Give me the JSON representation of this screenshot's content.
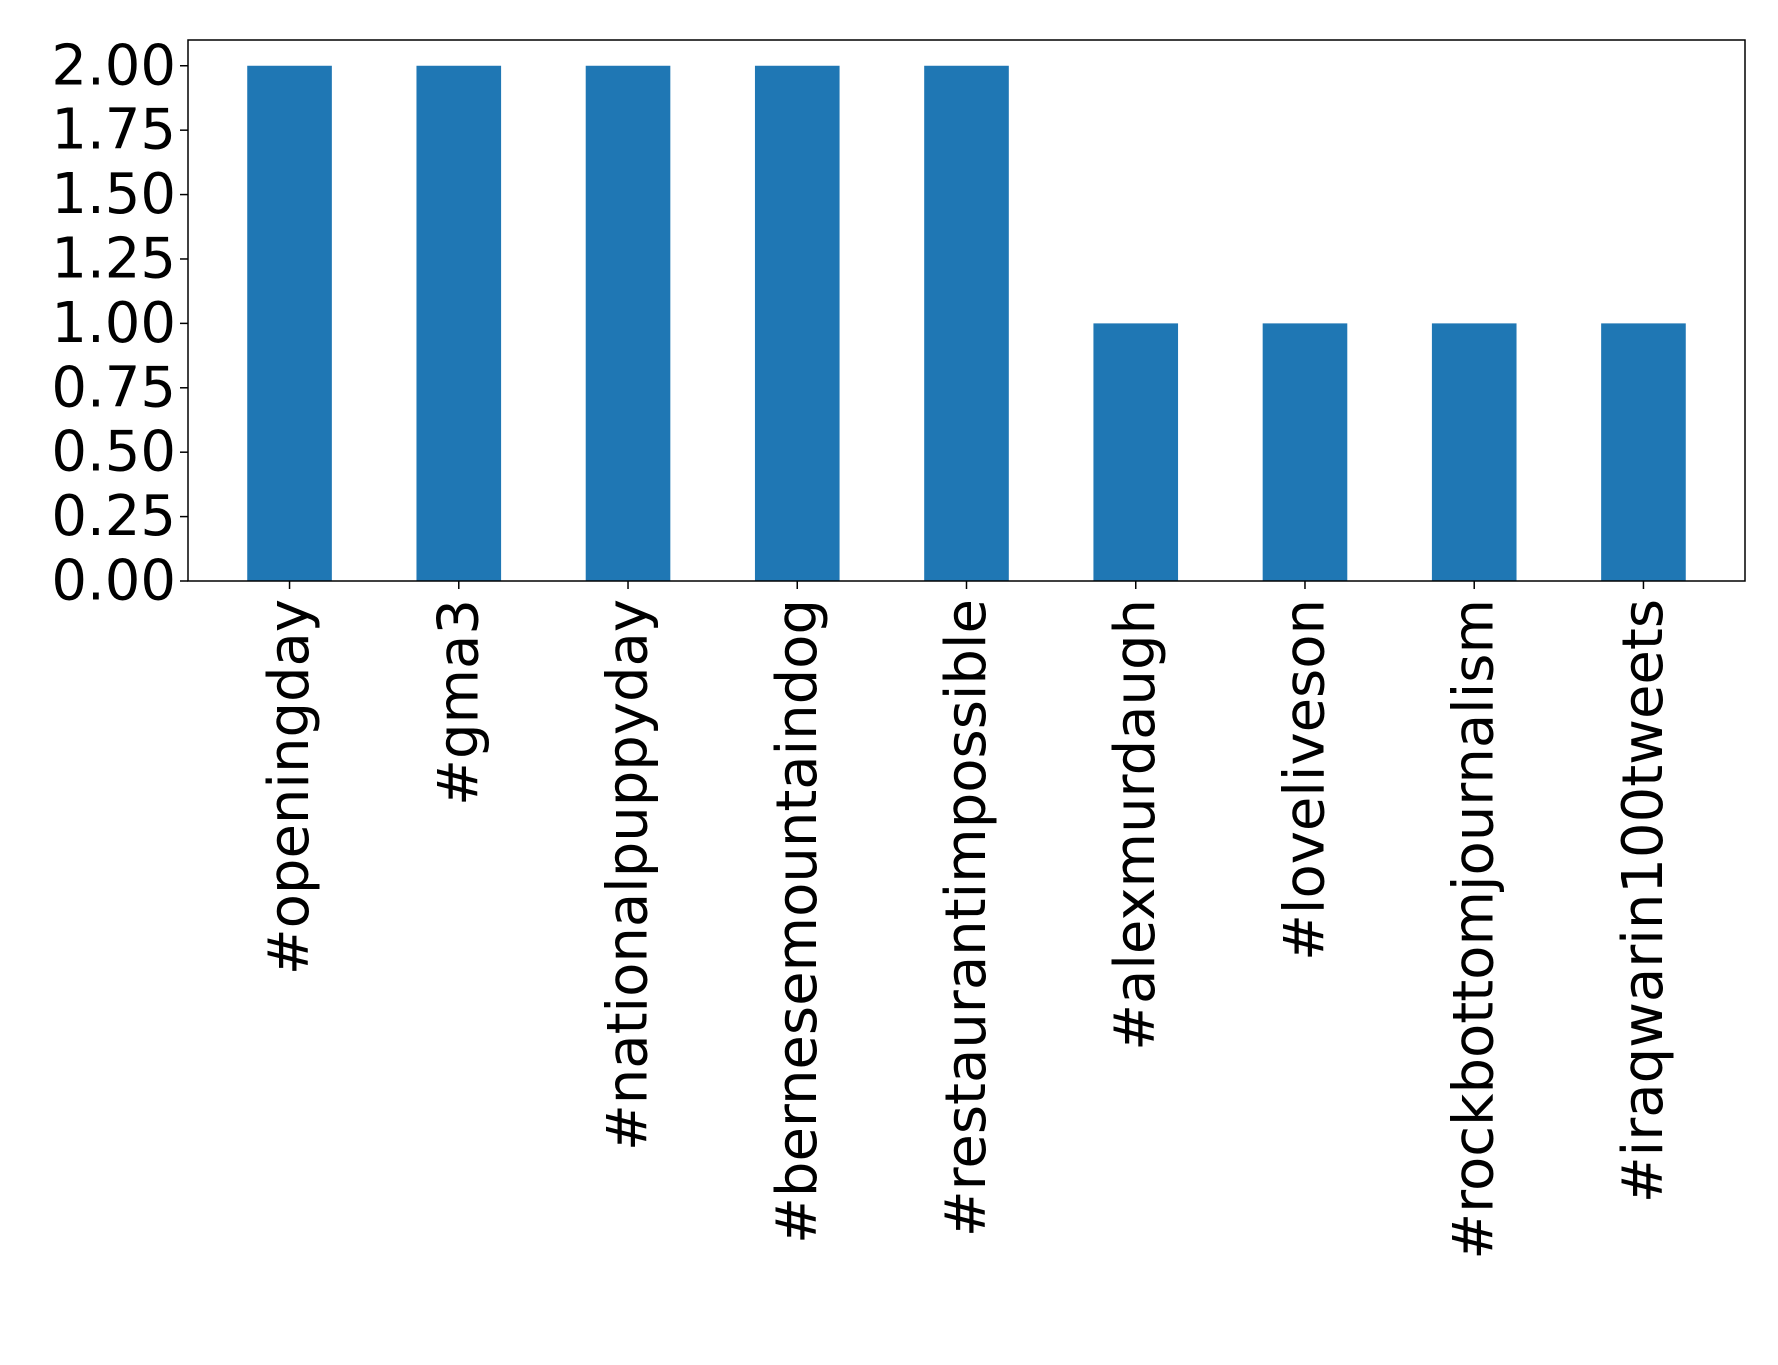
{
  "chart_data": {
    "type": "bar",
    "title": "",
    "xlabel": "",
    "ylabel": "",
    "categories": [
      "#openingday",
      "#gma3",
      "#nationalpuppyday",
      "#bernesemountaindog",
      "#restaurantimpossible",
      "#alexmurdaugh",
      "#loveliveson",
      "#rockbottomjournalism",
      "#iraqwarin100tweets"
    ],
    "values": [
      2,
      2,
      2,
      2,
      2,
      1,
      1,
      1,
      1
    ],
    "ylim": [
      0,
      2.1
    ],
    "yticks": [
      "0.00",
      "0.25",
      "0.50",
      "0.75",
      "1.00",
      "1.25",
      "1.50",
      "1.75",
      "2.00"
    ],
    "grid": false,
    "legend": "none",
    "bar_color": "#1f77b4"
  }
}
